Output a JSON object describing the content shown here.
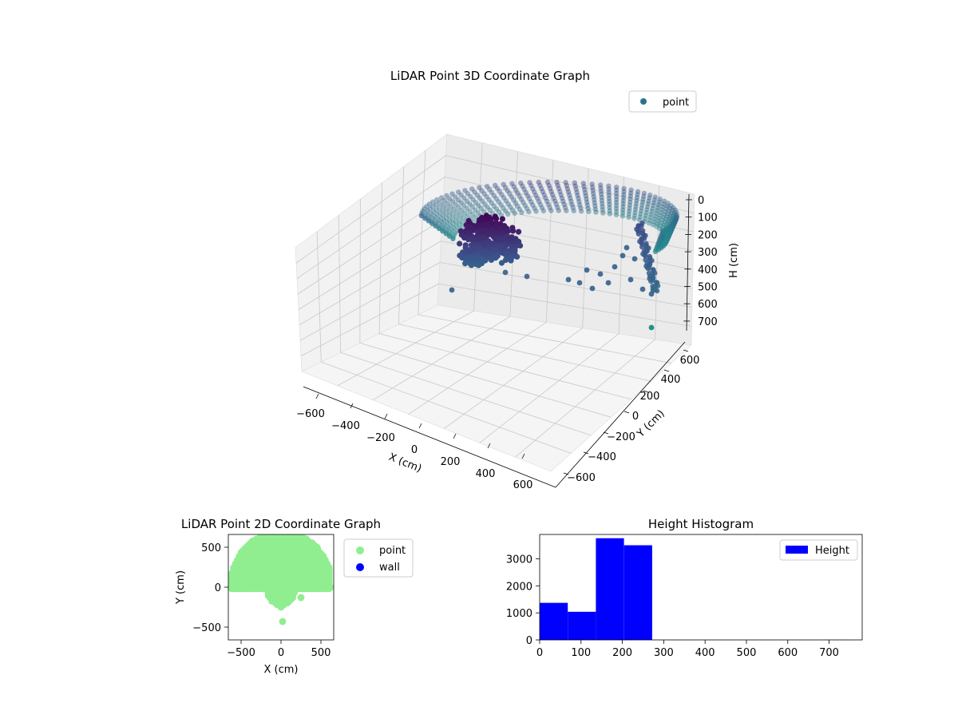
{
  "chart_data": [
    {
      "type": "scatter",
      "projection": "3d",
      "title": "LiDAR Point 3D Coordinate Graph",
      "xlabel": "X (cm)",
      "ylabel": "Y (cm)",
      "zlabel": "H (cm)",
      "xlim": [
        -700,
        700
      ],
      "ylim": [
        -700,
        700
      ],
      "zlim": [
        0,
        780
      ],
      "z_inverted": true,
      "xticks": [
        "−600",
        "−400",
        "−200",
        "0",
        "200",
        "400",
        "600"
      ],
      "yticks": [
        "−600",
        "−400",
        "−200",
        "0",
        "200",
        "400",
        "600"
      ],
      "zticks": [
        "0",
        "100",
        "200",
        "300",
        "400",
        "500",
        "600",
        "700"
      ],
      "legend": {
        "placement": "upper-right",
        "entries": [
          {
            "name": "point",
            "color": "#2c728e"
          }
        ]
      },
      "colormap": "viridis",
      "grid": true,
      "series": [
        {
          "name": "point",
          "description_points": [
            {
              "x": -600,
              "y": 50,
              "h": 210
            },
            {
              "x": -500,
              "y": 300,
              "h": 200
            },
            {
              "x": -300,
              "y": 500,
              "h": 205
            },
            {
              "x": 0,
              "y": 600,
              "h": 210
            },
            {
              "x": 300,
              "y": 500,
              "h": 215
            },
            {
              "x": 500,
              "y": 300,
              "h": 220
            },
            {
              "x": 600,
              "y": 50,
              "h": 230
            },
            {
              "x": 600,
              "y": 0,
              "h": 450
            },
            {
              "x": -100,
              "y": -200,
              "h": 250
            },
            {
              "x": 0,
              "y": -300,
              "h": 260
            },
            {
              "x": -50,
              "y": -250,
              "h": 230
            },
            {
              "x": 250,
              "y": -120,
              "h": 560
            },
            {
              "x": 20,
              "y": -430,
              "h": 620
            }
          ]
        }
      ]
    },
    {
      "type": "scatter",
      "title": "LiDAR Point 2D Coordinate Graph",
      "xlabel": "X (cm)",
      "ylabel": "Y (cm)",
      "xlim": [
        -660,
        660
      ],
      "ylim": [
        -660,
        660
      ],
      "xticks": [
        "−500",
        "0",
        "500"
      ],
      "yticks": [
        "−500",
        "0",
        "500"
      ],
      "legend": {
        "placement": "outside-right",
        "entries": [
          {
            "name": "point",
            "color": "#90ee90"
          },
          {
            "name": "wall",
            "color": "#0000ff"
          }
        ]
      },
      "series": [
        {
          "name": "point",
          "color": "#90ee90",
          "points": [
            [
              -600,
              0
            ],
            [
              -560,
              250
            ],
            [
              -420,
              480
            ],
            [
              -200,
              620
            ],
            [
              0,
              660
            ],
            [
              250,
              620
            ],
            [
              450,
              500
            ],
            [
              600,
              250
            ],
            [
              620,
              0
            ],
            [
              500,
              0
            ],
            [
              -500,
              0
            ],
            [
              -100,
              -150
            ],
            [
              0,
              -250
            ],
            [
              250,
              -130
            ],
            [
              20,
              -430
            ]
          ]
        },
        {
          "name": "wall",
          "color": "#0000ff",
          "points": []
        }
      ]
    },
    {
      "type": "bar",
      "title": "Height Histogram",
      "xlim": [
        0,
        780
      ],
      "ylim": [
        0,
        3900
      ],
      "xticks": [
        "0",
        "100",
        "200",
        "300",
        "400",
        "500",
        "600",
        "700"
      ],
      "yticks": [
        "0",
        "1000",
        "2000",
        "3000"
      ],
      "legend": {
        "placement": "upper-right",
        "entries": [
          {
            "name": "Height",
            "color": "#0000ff"
          }
        ]
      },
      "series": [
        {
          "name": "Height",
          "color": "#0000ff",
          "bins": [
            {
              "x0": 0,
              "x1": 68,
              "count": 1370
            },
            {
              "x0": 68,
              "x1": 136,
              "count": 1040
            },
            {
              "x0": 136,
              "x1": 204,
              "count": 3760
            },
            {
              "x0": 204,
              "x1": 272,
              "count": 3500
            },
            {
              "x0": 272,
              "x1": 340,
              "count": 0
            },
            {
              "x0": 340,
              "x1": 408,
              "count": 0
            },
            {
              "x0": 408,
              "x1": 476,
              "count": 0
            },
            {
              "x0": 476,
              "x1": 544,
              "count": 0
            },
            {
              "x0": 544,
              "x1": 612,
              "count": 0
            },
            {
              "x0": 612,
              "x1": 680,
              "count": 0
            },
            {
              "x0": 680,
              "x1": 748,
              "count": 2
            }
          ]
        }
      ]
    }
  ]
}
